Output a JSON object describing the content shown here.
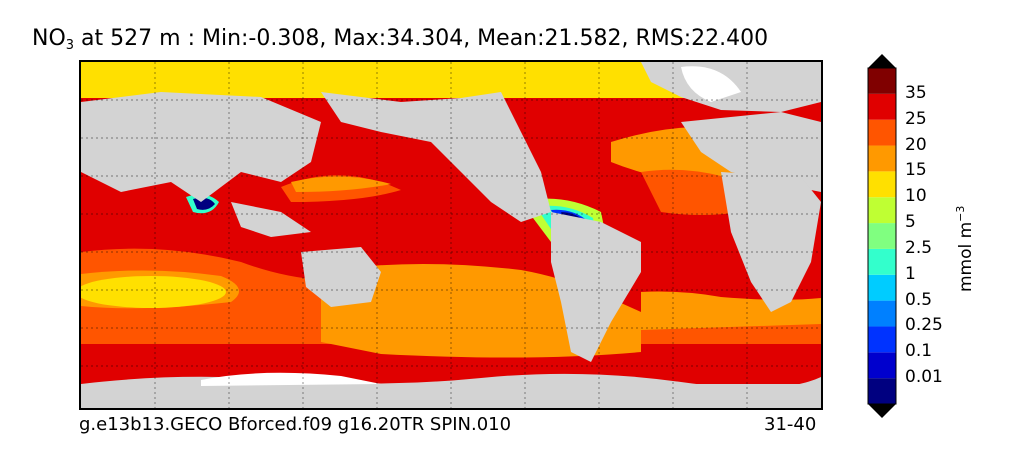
{
  "title": {
    "species_main": "NO",
    "species_sub": "3",
    "rest": " at 527 m : Min:-0.308, Max:34.304, Mean:21.582, RMS:22.400"
  },
  "footer": {
    "run_name": "g.e13b13.GECO Bforced.f09 g16.20TR SPIN.010",
    "years": "31-40"
  },
  "colorbar": {
    "units_main": "mmol m",
    "units_sup": "−3",
    "ticks": [
      "0.01",
      "0.1",
      "0.25",
      "0.5",
      "1",
      "2.5",
      "5",
      "10",
      "15",
      "20",
      "25",
      "35"
    ],
    "colors": [
      "#000080",
      "#0000cd",
      "#0033ff",
      "#0080ff",
      "#00ccff",
      "#33ffcc",
      "#80ff80",
      "#bfff33",
      "#ffe000",
      "#ff9900",
      "#ff5500",
      "#e00000",
      "#800000"
    ]
  },
  "colors": {
    "land": "#d3d3d3",
    "ice": "#ffffff",
    "polar_low": "#ffe000",
    "ocean_25": "#e00000",
    "ocean_20": "#ff5500",
    "ocean_15": "#ff9900",
    "ocean_5": "#bfff33"
  }
}
